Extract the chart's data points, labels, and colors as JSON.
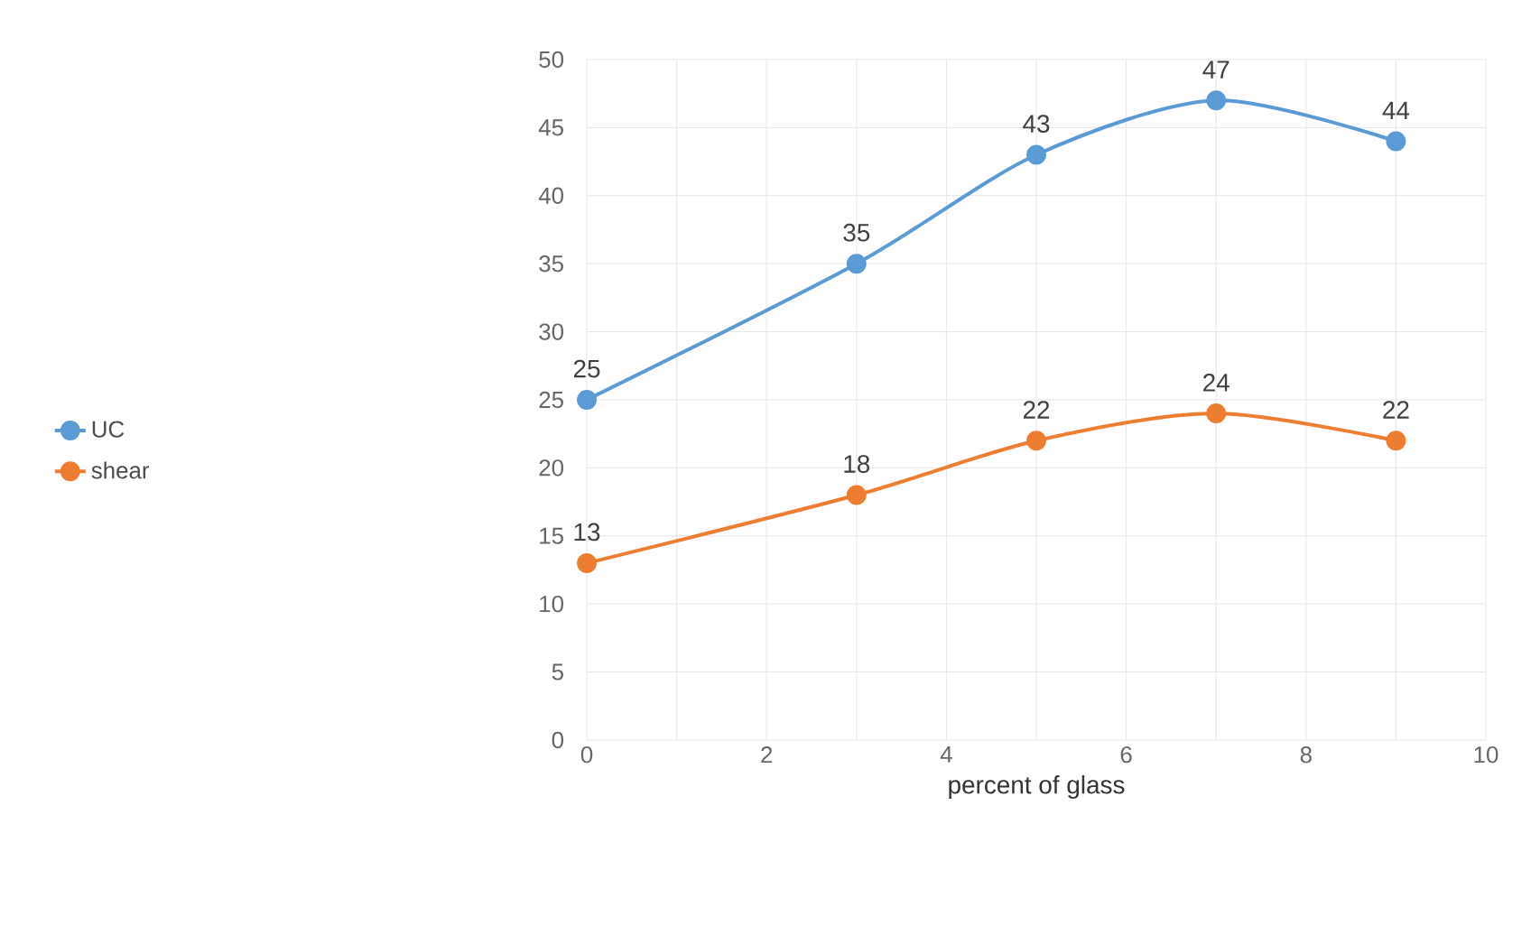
{
  "chart_data": {
    "type": "line",
    "xlabel": "percent of glass",
    "x": [
      0,
      3,
      5,
      7,
      9
    ],
    "series": [
      {
        "name": "UC",
        "color": "#5b9bd5",
        "values": [
          25,
          35,
          43,
          47,
          44
        ]
      },
      {
        "name": "shear",
        "color": "#ed7d31",
        "values": [
          13,
          18,
          22,
          24,
          22
        ]
      }
    ],
    "xlim": [
      0,
      10
    ],
    "xticks": [
      0,
      2,
      4,
      6,
      8,
      10
    ],
    "ylim": [
      0,
      50
    ],
    "yticks": [
      0,
      5,
      10,
      15,
      20,
      25,
      30,
      35,
      40,
      45,
      50
    ],
    "grid": true,
    "legend": "left",
    "marker": "circle",
    "line_style": "solid",
    "data_labels": true
  }
}
